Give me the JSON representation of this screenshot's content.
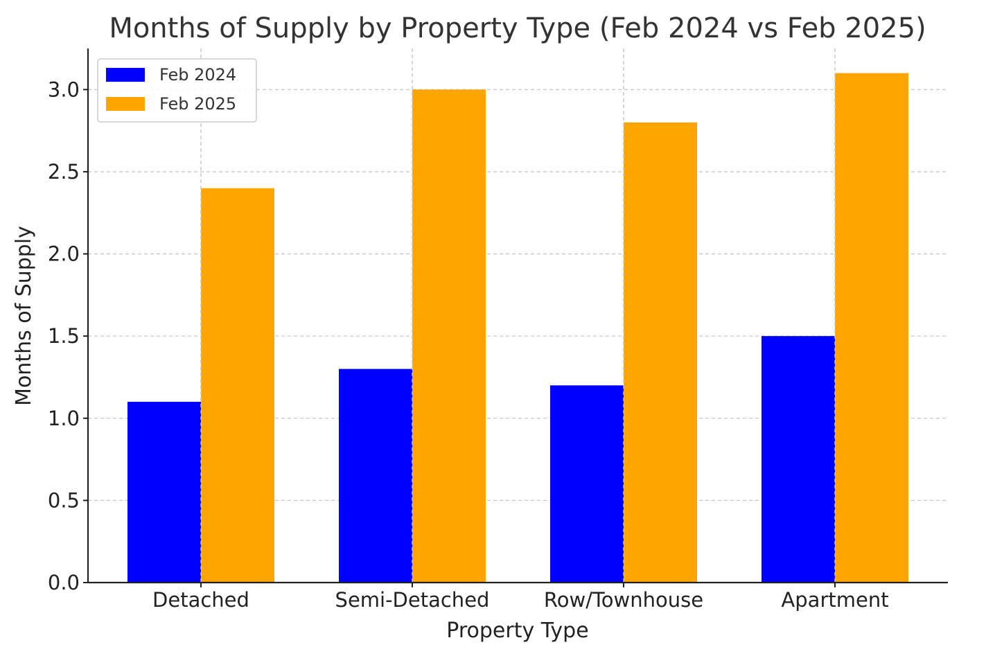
{
  "chart_data": {
    "type": "bar",
    "title": "Months of Supply by Property Type (Feb 2024 vs Feb 2025)",
    "xlabel": "Property Type",
    "ylabel": "Months of Supply",
    "categories": [
      "Detached",
      "Semi-Detached",
      "Row/Townhouse",
      "Apartment"
    ],
    "series": [
      {
        "name": "Feb 2024",
        "values": [
          1.1,
          1.3,
          1.2,
          1.5
        ],
        "color": "#0000ff"
      },
      {
        "name": "Feb 2025",
        "values": [
          2.4,
          3.0,
          2.8,
          3.1
        ],
        "color": "#ffa500"
      }
    ],
    "ylim": [
      0,
      3.25
    ],
    "yticks": [
      "0.0",
      "0.5",
      "1.0",
      "1.5",
      "2.0",
      "2.5",
      "3.0"
    ],
    "grid": true,
    "legend": "top-left"
  }
}
